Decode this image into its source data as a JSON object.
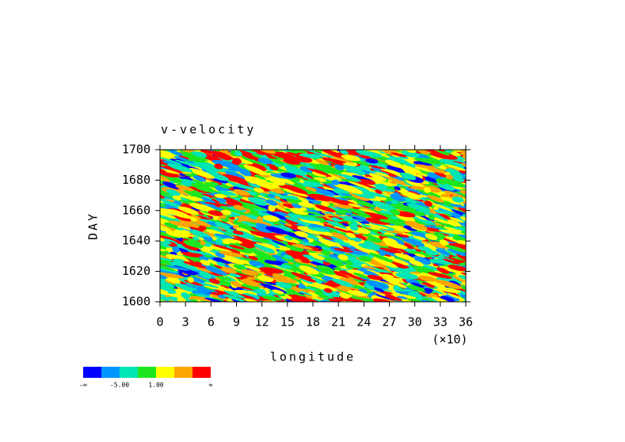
{
  "chart_data": {
    "type": "contour",
    "title": "v-velocity",
    "x_label": "longitude",
    "y_label": "DAY",
    "x_multiplier": "(×10)",
    "xlim": [
      0,
      36
    ],
    "xticks": [
      0,
      3,
      6,
      9,
      12,
      15,
      18,
      21,
      24,
      27,
      30,
      33,
      36
    ],
    "ylim": [
      1600,
      1700
    ],
    "yticks": [
      1600,
      1620,
      1640,
      1660,
      1680,
      1700
    ],
    "colorbar": {
      "colors": [
        "#0000ff",
        "#0096ff",
        "#00e6b4",
        "#1ee61e",
        "#ffff00",
        "#ffa500",
        "#ff0000"
      ],
      "levels": [
        "-∞",
        null,
        "-5.00",
        null,
        "1.00",
        null,
        null,
        "∞"
      ]
    }
  }
}
